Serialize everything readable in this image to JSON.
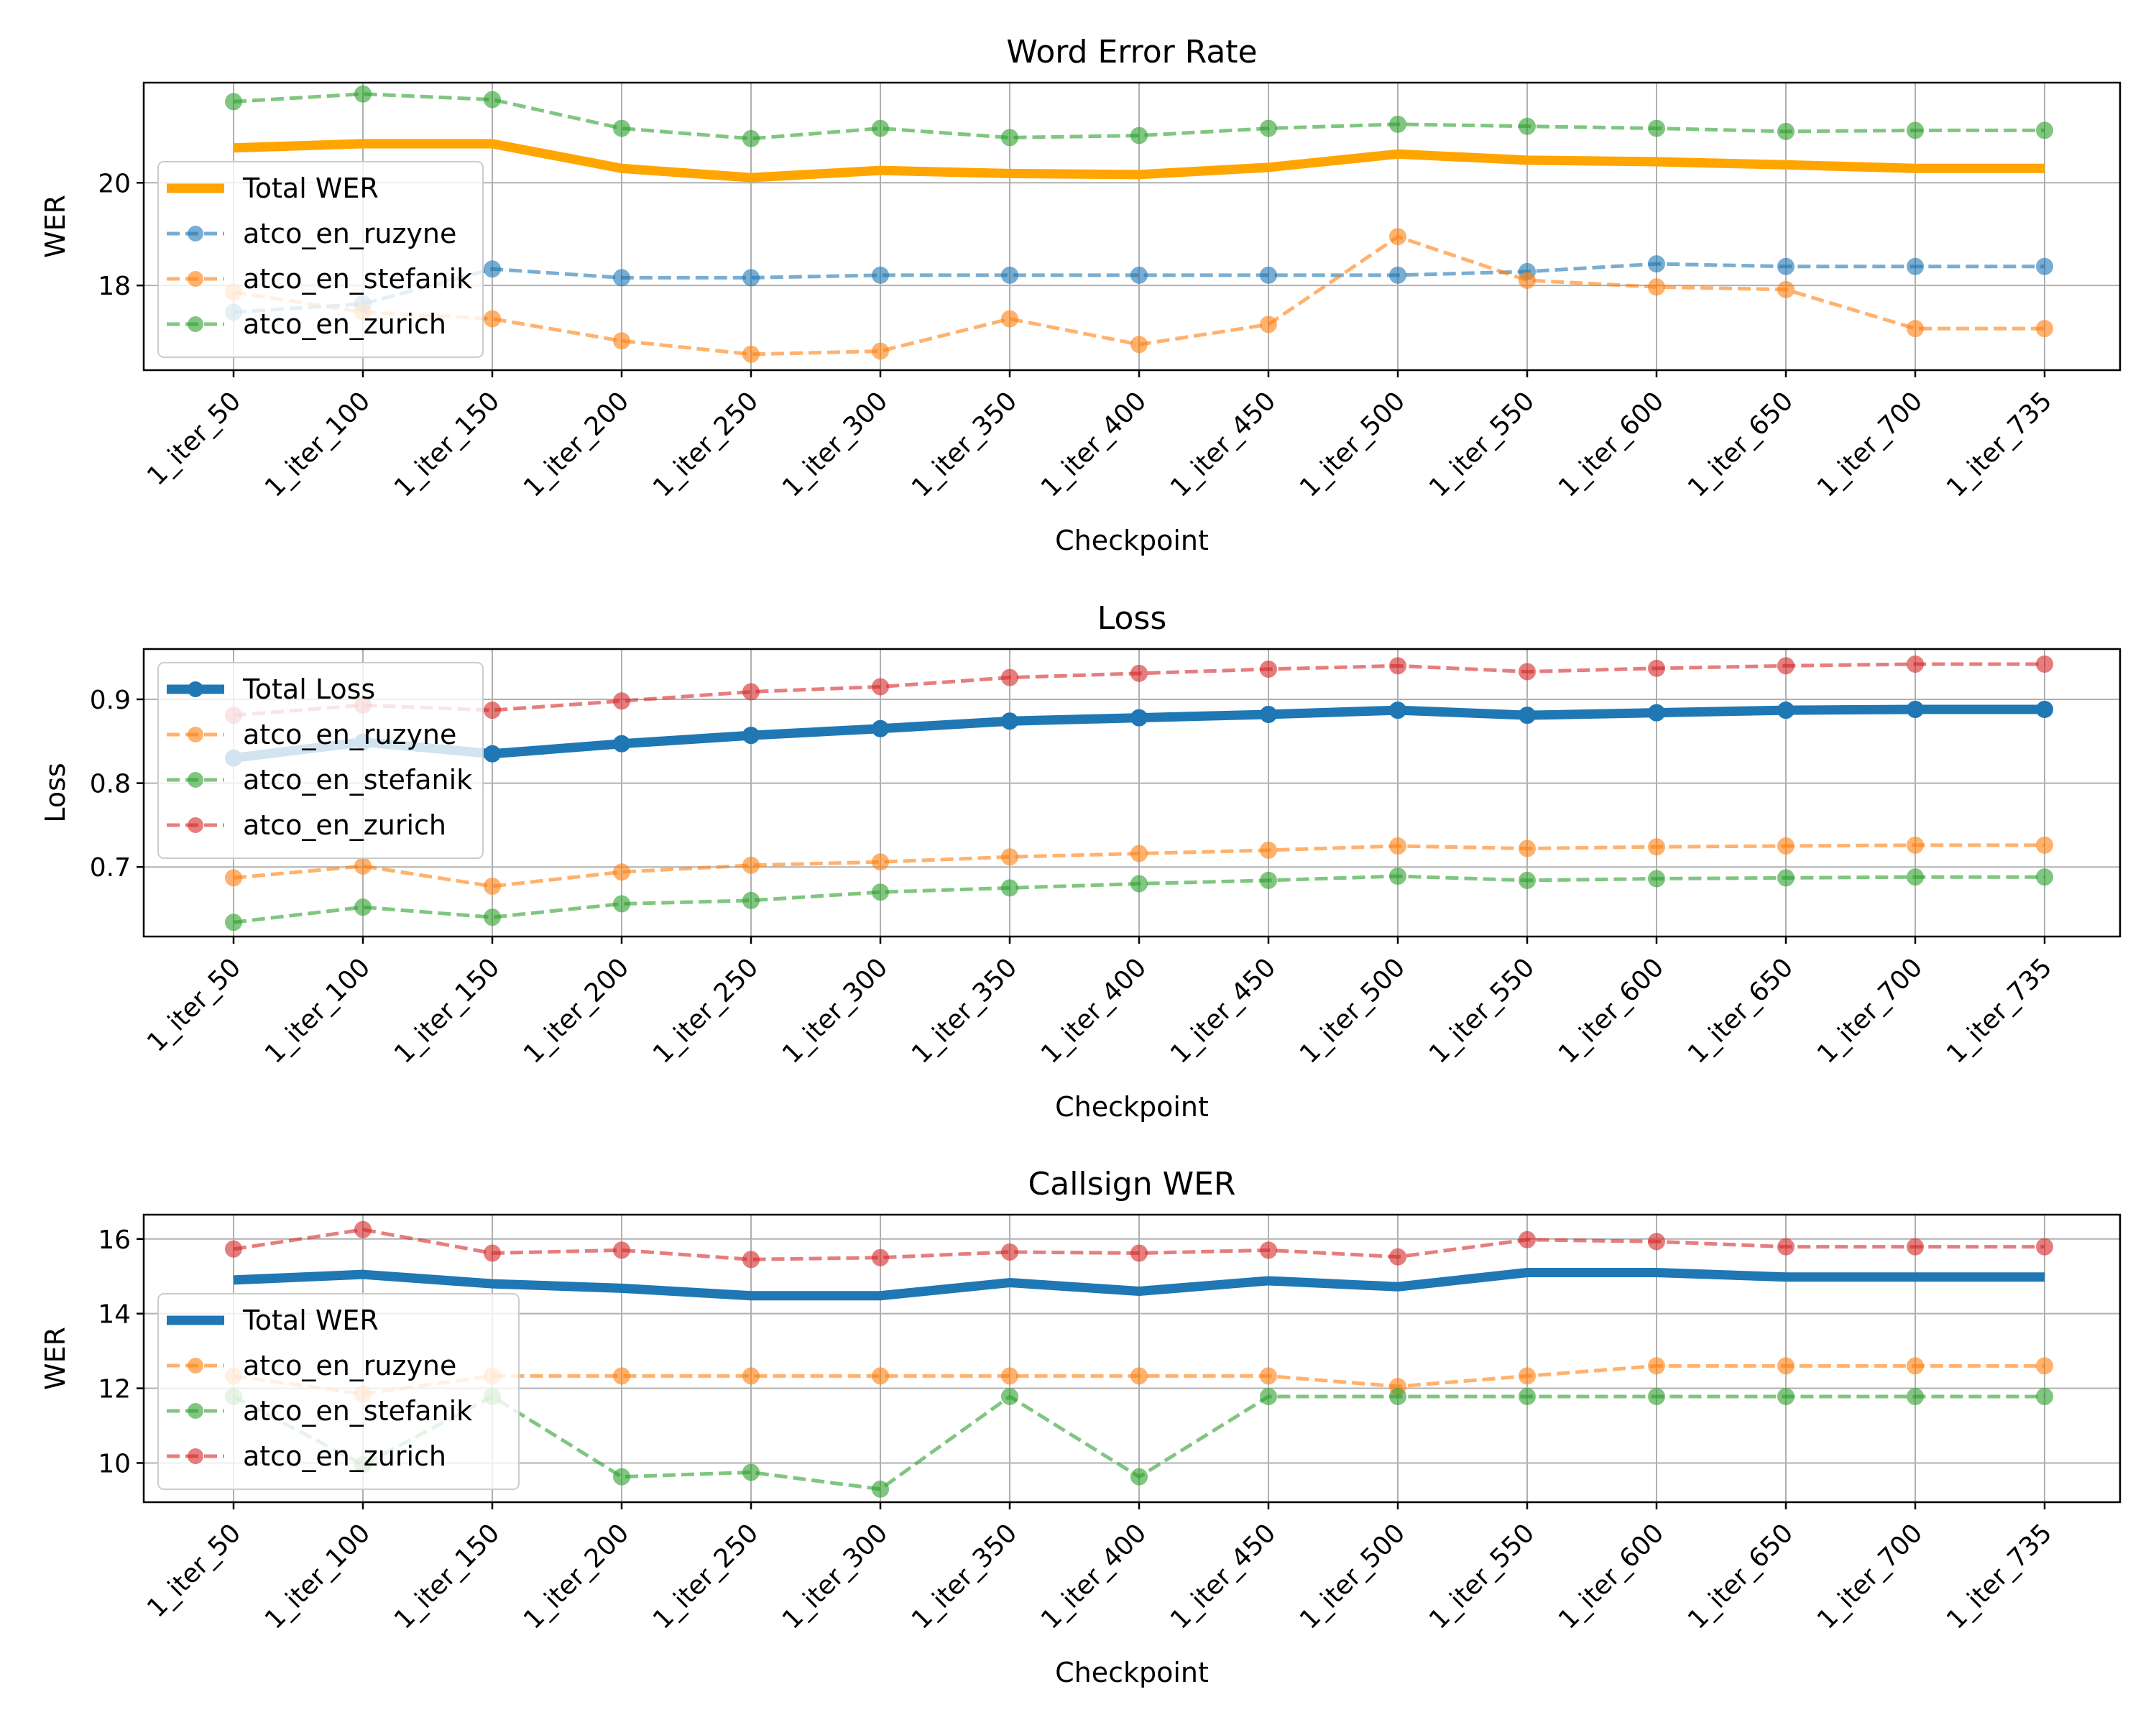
{
  "checkpoints": [
    "1_iter_50",
    "1_iter_100",
    "1_iter_150",
    "1_iter_200",
    "1_iter_250",
    "1_iter_300",
    "1_iter_350",
    "1_iter_400",
    "1_iter_450",
    "1_iter_500",
    "1_iter_550",
    "1_iter_600",
    "1_iter_650",
    "1_iter_700",
    "1_iter_735"
  ],
  "chart_data": [
    {
      "type": "line",
      "title": "Word Error Rate",
      "xlabel": "Checkpoint",
      "ylabel": "WER",
      "ylim": [
        16.35,
        21.95
      ],
      "yticks": [
        18,
        20
      ],
      "grid": true,
      "legend_position": "lower-left",
      "categories": [
        "1_iter_50",
        "1_iter_100",
        "1_iter_150",
        "1_iter_200",
        "1_iter_250",
        "1_iter_300",
        "1_iter_350",
        "1_iter_400",
        "1_iter_450",
        "1_iter_500",
        "1_iter_550",
        "1_iter_600",
        "1_iter_650",
        "1_iter_700",
        "1_iter_735"
      ],
      "series": [
        {
          "name": "Total WER",
          "color": "#ffa500",
          "style": "solid-thick",
          "values": [
            20.68,
            20.76,
            20.76,
            20.28,
            20.1,
            20.24,
            20.18,
            20.16,
            20.3,
            20.56,
            20.44,
            20.41,
            20.35,
            20.28,
            20.28
          ]
        },
        {
          "name": "atco_en_ruzyne",
          "color": "#1f77b4",
          "style": "dashed-markers",
          "values": [
            17.48,
            17.64,
            18.32,
            18.15,
            18.15,
            18.2,
            18.2,
            18.2,
            18.2,
            18.2,
            18.27,
            18.42,
            18.37,
            18.37,
            18.37
          ]
        },
        {
          "name": "atco_en_stefanik",
          "color": "#ff7f0e",
          "style": "dashed-markers",
          "values": [
            17.87,
            17.48,
            17.35,
            16.92,
            16.66,
            16.72,
            17.35,
            16.85,
            17.24,
            18.95,
            18.1,
            17.97,
            17.92,
            17.16,
            17.16
          ]
        },
        {
          "name": "atco_en_zurich",
          "color": "#2ca02c",
          "style": "dashed-markers",
          "values": [
            21.58,
            21.73,
            21.62,
            21.06,
            20.86,
            21.06,
            20.88,
            20.92,
            21.06,
            21.14,
            21.1,
            21.06,
            21.0,
            21.02,
            21.02
          ]
        }
      ]
    },
    {
      "type": "line",
      "title": "Loss",
      "xlabel": "Checkpoint",
      "ylabel": "Loss",
      "ylim": [
        0.617,
        0.96
      ],
      "yticks": [
        0.7,
        0.8,
        0.9
      ],
      "grid": true,
      "legend_position": "upper-left",
      "categories": [
        "1_iter_50",
        "1_iter_100",
        "1_iter_150",
        "1_iter_200",
        "1_iter_250",
        "1_iter_300",
        "1_iter_350",
        "1_iter_400",
        "1_iter_450",
        "1_iter_500",
        "1_iter_550",
        "1_iter_600",
        "1_iter_650",
        "1_iter_700",
        "1_iter_735"
      ],
      "series": [
        {
          "name": "Total Loss",
          "color": "#1f77b4",
          "style": "solid-thick-markers",
          "values": [
            0.83,
            0.849,
            0.835,
            0.847,
            0.857,
            0.865,
            0.874,
            0.878,
            0.882,
            0.887,
            0.881,
            0.884,
            0.887,
            0.888,
            0.888
          ]
        },
        {
          "name": "atco_en_ruzyne",
          "color": "#ff7f0e",
          "style": "dashed-markers",
          "values": [
            0.687,
            0.701,
            0.677,
            0.694,
            0.702,
            0.706,
            0.712,
            0.716,
            0.72,
            0.725,
            0.722,
            0.724,
            0.725,
            0.726,
            0.726
          ]
        },
        {
          "name": "atco_en_stefanik",
          "color": "#2ca02c",
          "style": "dashed-markers",
          "values": [
            0.634,
            0.652,
            0.64,
            0.656,
            0.66,
            0.67,
            0.675,
            0.68,
            0.684,
            0.689,
            0.684,
            0.686,
            0.687,
            0.688,
            0.688
          ]
        },
        {
          "name": "atco_en_zurich",
          "color": "#d62728",
          "style": "dashed-markers",
          "values": [
            0.881,
            0.893,
            0.887,
            0.898,
            0.909,
            0.915,
            0.926,
            0.931,
            0.936,
            0.94,
            0.933,
            0.937,
            0.94,
            0.942,
            0.942
          ]
        }
      ]
    },
    {
      "type": "line",
      "title": "Callsign WER",
      "xlabel": "Checkpoint",
      "ylabel": "WER",
      "ylim": [
        8.95,
        16.65
      ],
      "yticks": [
        10,
        12,
        14,
        16
      ],
      "grid": true,
      "legend_position": "lower-left",
      "categories": [
        "1_iter_50",
        "1_iter_100",
        "1_iter_150",
        "1_iter_200",
        "1_iter_250",
        "1_iter_300",
        "1_iter_350",
        "1_iter_400",
        "1_iter_450",
        "1_iter_500",
        "1_iter_550",
        "1_iter_600",
        "1_iter_650",
        "1_iter_700",
        "1_iter_735"
      ],
      "series": [
        {
          "name": "Total WER",
          "color": "#1f77b4",
          "style": "solid-thick",
          "values": [
            14.9,
            15.05,
            14.8,
            14.68,
            14.48,
            14.48,
            14.83,
            14.6,
            14.88,
            14.72,
            15.1,
            15.1,
            14.98,
            14.98,
            14.98
          ]
        },
        {
          "name": "atco_en_ruzyne",
          "color": "#ff7f0e",
          "style": "dashed-markers",
          "values": [
            12.33,
            11.85,
            12.33,
            12.33,
            12.33,
            12.33,
            12.33,
            12.33,
            12.33,
            12.05,
            12.33,
            12.6,
            12.6,
            12.6,
            12.6
          ]
        },
        {
          "name": "atco_en_stefanik",
          "color": "#2ca02c",
          "style": "dashed-markers",
          "values": [
            11.78,
            9.95,
            11.78,
            9.63,
            9.75,
            9.3,
            11.78,
            9.63,
            11.78,
            11.78,
            11.78,
            11.78,
            11.78,
            11.78,
            11.78
          ]
        },
        {
          "name": "atco_en_zurich",
          "color": "#d62728",
          "style": "dashed-markers",
          "values": [
            15.73,
            16.25,
            15.62,
            15.7,
            15.45,
            15.5,
            15.65,
            15.62,
            15.7,
            15.52,
            15.98,
            15.93,
            15.79,
            15.79,
            15.79
          ]
        }
      ]
    }
  ]
}
